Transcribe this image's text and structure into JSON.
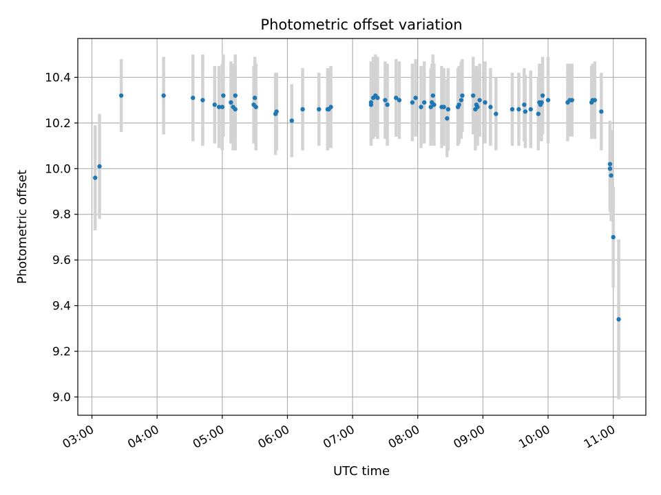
{
  "chart_data": {
    "type": "scatter",
    "title": "Photometric offset variation",
    "xlabel": "UTC time",
    "ylabel": "Photometric offset",
    "xlim": [
      "02:47",
      "11:30"
    ],
    "ylim": [
      8.92,
      10.57
    ],
    "x_ticks": [
      "03:00",
      "04:00",
      "05:00",
      "06:00",
      "07:00",
      "08:00",
      "09:00",
      "10:00",
      "11:00"
    ],
    "y_ticks": [
      "9.0",
      "9.2",
      "9.4",
      "9.6",
      "9.8",
      "10.0",
      "10.2",
      "10.4"
    ],
    "grid": true,
    "colors": {
      "point": "#1f77b4",
      "error_bar": "#d3d3d3",
      "grid": "#b0b0b0"
    },
    "series": [
      {
        "x": [
          "03:03",
          "03:07",
          "03:27",
          "04:06",
          "04:33",
          "04:42",
          "04:53",
          "04:57",
          "05:00",
          "05:01",
          "05:08",
          "05:10",
          "05:12",
          "05:12",
          "05:29",
          "05:30",
          "05:31",
          "05:49",
          "05:50",
          "06:04",
          "06:14",
          "06:29",
          "06:37",
          "06:38",
          "06:40",
          "07:17",
          "07:17",
          "07:19",
          "07:21",
          "07:23",
          "07:30",
          "07:32",
          "07:40",
          "07:43",
          "07:55",
          "07:58",
          "08:03",
          "08:06",
          "08:12",
          "08:13",
          "08:14",
          "08:15",
          "08:22",
          "08:24",
          "08:27",
          "08:28",
          "08:37",
          "08:38",
          "08:40",
          "08:41",
          "08:51",
          "08:53",
          "08:54",
          "08:55",
          "08:57",
          "09:02",
          "09:07",
          "09:12",
          "09:27",
          "09:33",
          "09:38",
          "09:39",
          "09:44",
          "09:51",
          "09:52",
          "09:53",
          "09:54",
          "09:55",
          "10:00",
          "10:18",
          "10:20",
          "10:22",
          "10:40",
          "10:41",
          "10:43",
          "10:49",
          "10:57",
          "10:57",
          "10:58",
          "11:00",
          "11:05"
        ],
        "y": [
          9.96,
          10.01,
          10.32,
          10.32,
          10.31,
          10.3,
          10.28,
          10.27,
          10.27,
          10.32,
          10.29,
          10.27,
          10.26,
          10.32,
          10.28,
          10.31,
          10.27,
          10.24,
          10.25,
          10.21,
          10.26,
          10.26,
          10.26,
          10.26,
          10.27,
          10.29,
          10.28,
          10.31,
          10.32,
          10.31,
          10.3,
          10.28,
          10.31,
          10.3,
          10.29,
          10.31,
          10.27,
          10.29,
          10.27,
          10.29,
          10.32,
          10.28,
          10.27,
          10.27,
          10.22,
          10.26,
          10.27,
          10.28,
          10.3,
          10.32,
          10.32,
          10.26,
          10.28,
          10.27,
          10.3,
          10.29,
          10.27,
          10.24,
          10.26,
          10.26,
          10.28,
          10.25,
          10.26,
          10.24,
          10.29,
          10.28,
          10.29,
          10.32,
          10.3,
          10.29,
          10.3,
          10.3,
          10.29,
          10.3,
          10.3,
          10.25,
          10.02,
          10.0,
          9.97,
          9.7,
          9.34
        ],
        "yerr": [
          0.23,
          0.23,
          0.16,
          0.17,
          0.19,
          0.2,
          0.17,
          0.18,
          0.19,
          0.18,
          0.18,
          0.19,
          0.18,
          0.18,
          0.17,
          0.18,
          0.19,
          0.18,
          0.17,
          0.16,
          0.18,
          0.16,
          0.18,
          0.17,
          0.18,
          0.18,
          0.18,
          0.18,
          0.18,
          0.18,
          0.17,
          0.18,
          0.17,
          0.17,
          0.17,
          0.17,
          0.18,
          0.18,
          0.17,
          0.17,
          0.18,
          0.18,
          0.18,
          0.17,
          0.17,
          0.18,
          0.17,
          0.17,
          0.17,
          0.16,
          0.17,
          0.18,
          0.17,
          0.17,
          0.16,
          0.18,
          0.17,
          0.16,
          0.16,
          0.16,
          0.16,
          0.16,
          0.17,
          0.16,
          0.17,
          0.16,
          0.17,
          0.17,
          0.19,
          0.17,
          0.16,
          0.16,
          0.16,
          0.16,
          0.17,
          0.17,
          0.19,
          0.19,
          0.2,
          0.22,
          0.35
        ]
      }
    ]
  }
}
